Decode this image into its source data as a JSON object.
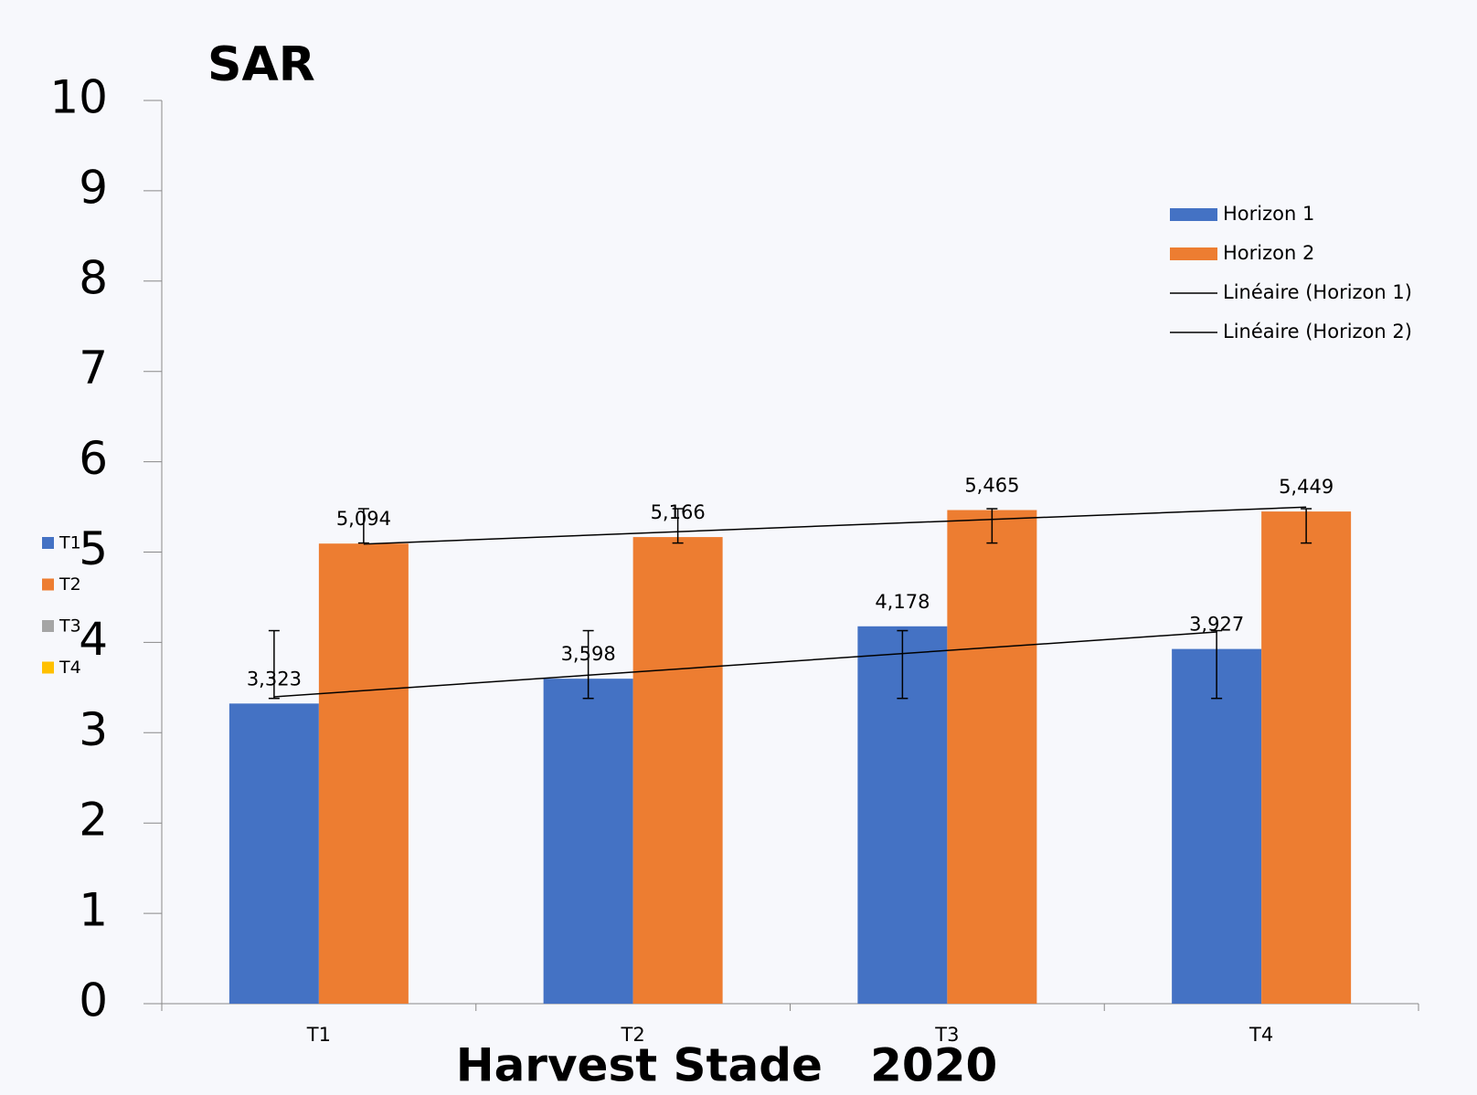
{
  "chart_data": {
    "type": "bar",
    "title": "SAR",
    "x_label": "Harvest Stade   2020",
    "categories": [
      "T1",
      "T2",
      "T3",
      "T4"
    ],
    "series": [
      {
        "name": "Horizon 1",
        "color": "#4472c4",
        "values": [
          3.323,
          3.598,
          4.178,
          3.927
        ],
        "value_labels": [
          "3,323",
          "3,598",
          "4,178",
          "3,927"
        ],
        "error_range": [
          [
            3.38,
            4.13
          ],
          [
            3.38,
            4.13
          ],
          [
            3.38,
            4.13
          ],
          [
            3.38,
            4.13
          ]
        ]
      },
      {
        "name": "Horizon 2",
        "color": "#ed7d31",
        "values": [
          5.094,
          5.166,
          5.465,
          5.449
        ],
        "value_labels": [
          "5,094",
          "5,166",
          "5,465",
          "5,449"
        ],
        "error_range": [
          [
            5.1,
            5.48
          ],
          [
            5.1,
            5.48
          ],
          [
            5.1,
            5.48
          ],
          [
            5.1,
            5.48
          ]
        ]
      }
    ],
    "trendlines": [
      {
        "name": "Linéaire (Horizon 1)",
        "series": 0,
        "color": "#000000"
      },
      {
        "name": "Linéaire (Horizon 2)",
        "series": 1,
        "color": "#000000"
      }
    ],
    "side_legend": [
      {
        "name": "T1",
        "color": "#4472c4"
      },
      {
        "name": "T2",
        "color": "#ed7d31"
      },
      {
        "name": "T3",
        "color": "#a5a5a5"
      },
      {
        "name": "T4",
        "color": "#ffc000"
      }
    ],
    "ylim": [
      0,
      10
    ],
    "yticks": [
      0,
      1,
      2,
      3,
      4,
      5,
      6,
      7,
      8,
      9,
      10
    ],
    "grid": false,
    "legend": "upper right"
  }
}
